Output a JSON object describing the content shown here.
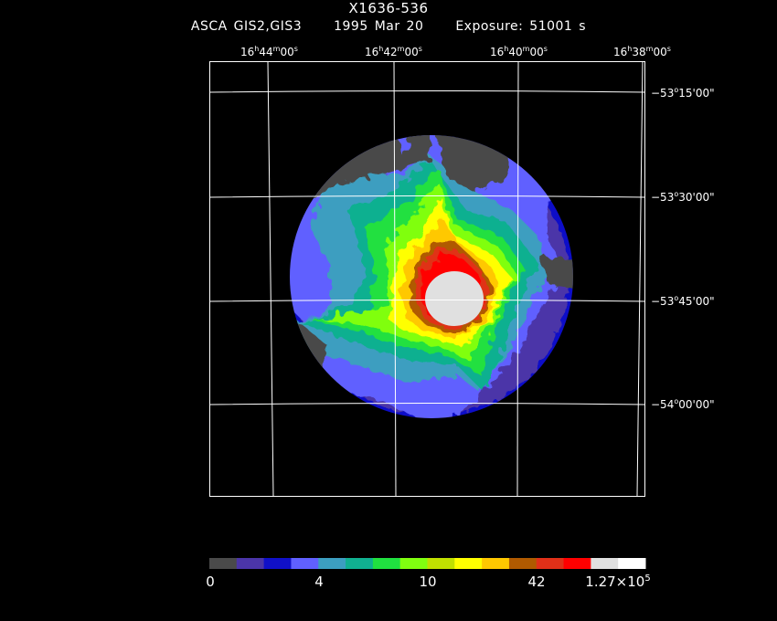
{
  "header": {
    "object": "X1636-536",
    "instrument": "ASCA GIS2,GIS3",
    "date": "1995 Mar 20",
    "exposure": "Exposure: 51001 s"
  },
  "ra_labels": [
    {
      "h": "16",
      "m": "44",
      "s": "00"
    },
    {
      "h": "16",
      "m": "42",
      "s": "00"
    },
    {
      "h": "16",
      "m": "40",
      "s": "00"
    },
    {
      "h": "16",
      "m": "38",
      "s": "00"
    }
  ],
  "dec_labels": [
    {
      "d": "−53",
      "m": "15",
      "s": "00"
    },
    {
      "d": "−53",
      "m": "30",
      "s": "00"
    },
    {
      "d": "−53",
      "m": "45",
      "s": "00"
    },
    {
      "d": "−54",
      "m": "00",
      "s": "00"
    }
  ],
  "ra_units": {
    "h": "h",
    "m": "m",
    "s": "s"
  },
  "dec_units": {
    "d": "o",
    "m": "'",
    "s": "\""
  },
  "colorbar": {
    "colors": [
      "#4a4a4a",
      "#4b35a8",
      "#1010c8",
      "#6060ff",
      "#3c9ec0",
      "#10b090",
      "#20e040",
      "#80ff10",
      "#c0e000",
      "#ffff00",
      "#ffc800",
      "#b05a00",
      "#e03018",
      "#ff0000",
      "#e0e0e0",
      "#ffffff"
    ],
    "labels": [
      "0",
      "4",
      "10",
      "42"
    ],
    "max_label_base": "1.27×10",
    "max_label_exp": "5"
  }
}
